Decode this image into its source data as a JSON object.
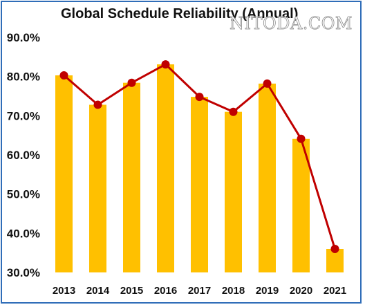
{
  "watermark": "NITODA.COM",
  "chart_data": {
    "type": "bar",
    "title": "Global Schedule Reliability (Annual)",
    "xlabel": "",
    "ylabel": "",
    "categories": [
      "2013",
      "2014",
      "2015",
      "2016",
      "2017",
      "2018",
      "2019",
      "2020",
      "2021"
    ],
    "values": [
      80.3,
      72.8,
      78.4,
      83.1,
      74.8,
      71.0,
      78.2,
      64.1,
      36.0
    ],
    "line_overlay": true,
    "ylim": [
      30,
      90
    ],
    "yticks": [
      30,
      40,
      50,
      60,
      70,
      80,
      90
    ],
    "ytick_labels": [
      "30.0%",
      "40.0%",
      "50.0%",
      "60.0%",
      "70.0%",
      "80.0%",
      "90.0%"
    ],
    "grid": false,
    "legend": "none",
    "colors": {
      "bar": "#ffc000",
      "line": "#c00000",
      "marker": "#c00000",
      "border": "#2f6db8"
    }
  }
}
